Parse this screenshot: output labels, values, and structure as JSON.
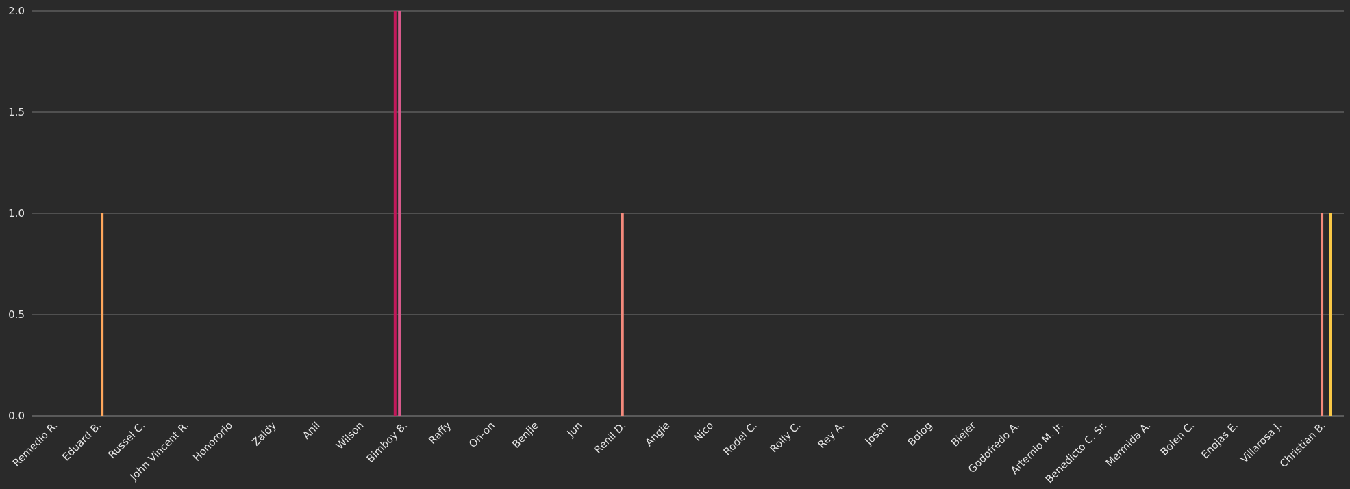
{
  "chart_data": {
    "type": "bar",
    "title": "",
    "xlabel": "",
    "ylabel": "",
    "ylim": [
      0,
      2
    ],
    "yticks": [
      "0.0",
      "0.5",
      "1.0",
      "1.5",
      "2.0"
    ],
    "grid": true,
    "categories": [
      "Remedio R.",
      "Eduard B.",
      "Russel C.",
      "John Vincent R.",
      "Honororio",
      "Zaldy",
      "Anil",
      "Wilson",
      "Bimboy B.",
      "Raffy",
      "On-on",
      "Benjie",
      "Jun",
      "Renil D.",
      "Angie",
      "Nico",
      "Rodel C.",
      "Rolly C.",
      "Rey A.",
      "Josan",
      "Bolog",
      "Biejer",
      "Godofredo A.",
      "Artemio M. Jr.",
      "Benedicto C. Sr.",
      "Mermida A.",
      "Bolen C.",
      "Enojas E.",
      "Villarosa J.",
      "Christian B."
    ],
    "series": [
      {
        "color": "#c2185b",
        "values": [
          0,
          0,
          0,
          0,
          0,
          0,
          0,
          0,
          2,
          0,
          0,
          0,
          0,
          0,
          0,
          0,
          0,
          0,
          0,
          0,
          0,
          0,
          0,
          0,
          0,
          0,
          0,
          0,
          0,
          0
        ]
      },
      {
        "color": "#d85a8c",
        "values": [
          0,
          0,
          0,
          0,
          0,
          0,
          0,
          0,
          2,
          0,
          0,
          0,
          0,
          0,
          0,
          0,
          0,
          0,
          0,
          0,
          0,
          0,
          0,
          0,
          0,
          0,
          0,
          0,
          0,
          0
        ]
      },
      {
        "color": "#f48a7c",
        "values": [
          0,
          0,
          0,
          0,
          0,
          0,
          0,
          0,
          0,
          0,
          0,
          0,
          0,
          1,
          0,
          0,
          0,
          0,
          0,
          0,
          0,
          0,
          0,
          0,
          0,
          0,
          0,
          0,
          0,
          1
        ]
      },
      {
        "color": "#ffa75c",
        "values": [
          0,
          1,
          0,
          0,
          0,
          0,
          0,
          0,
          0,
          0,
          0,
          0,
          0,
          0,
          0,
          0,
          0,
          0,
          0,
          0,
          0,
          0,
          0,
          0,
          0,
          0,
          0,
          0,
          0,
          0
        ]
      },
      {
        "color": "#f9c846",
        "values": [
          0,
          0,
          0,
          0,
          0,
          0,
          0,
          0,
          0,
          0,
          0,
          0,
          0,
          0,
          0,
          0,
          0,
          0,
          0,
          0,
          0,
          0,
          0,
          0,
          0,
          0,
          0,
          0,
          0,
          1
        ]
      }
    ]
  }
}
